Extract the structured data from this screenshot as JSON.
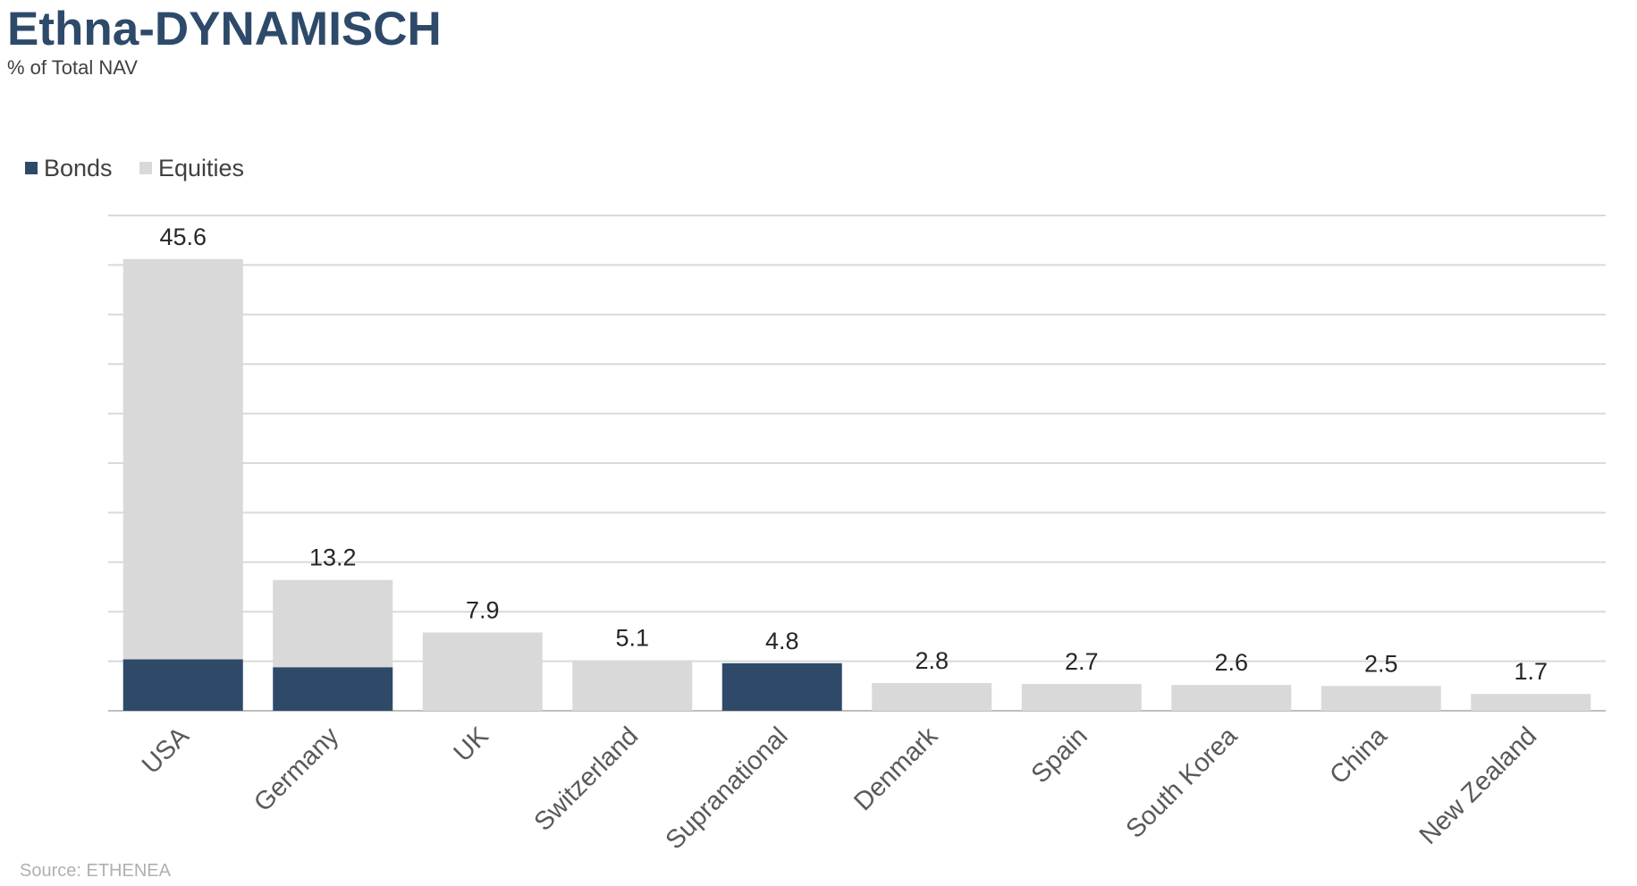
{
  "title": "Ethna-DYNAMISCH",
  "subtitle": "% of Total NAV",
  "source": "Source: ETHENEA",
  "colors": {
    "bonds": "#2f4a68",
    "equities": "#d9d9d9",
    "grid": "#d9d9d9",
    "axis": "#bfbfbf",
    "title": "#2e4a6a"
  },
  "chart_data": {
    "type": "bar",
    "stacked": true,
    "categories": [
      "USA",
      "Germany",
      "UK",
      "Switzerland",
      "Supranational",
      "Denmark",
      "Spain",
      "South Korea",
      "China",
      "New Zealand"
    ],
    "series": [
      {
        "name": "Bonds",
        "values": [
          5.2,
          4.4,
          0,
          0,
          4.8,
          0,
          0,
          0,
          0,
          0
        ]
      },
      {
        "name": "Equities",
        "values": [
          40.4,
          8.8,
          7.9,
          5.1,
          0,
          2.8,
          2.7,
          2.6,
          2.5,
          1.7
        ]
      }
    ],
    "totals": [
      "45.6",
      "13.2",
      "7.9",
      "5.1",
      "4.8",
      "2.8",
      "2.7",
      "2.6",
      "2.5",
      "1.7"
    ],
    "ylim": [
      0,
      50
    ],
    "grid": true,
    "legend": "top-left",
    "xlabel": "",
    "ylabel": ""
  }
}
